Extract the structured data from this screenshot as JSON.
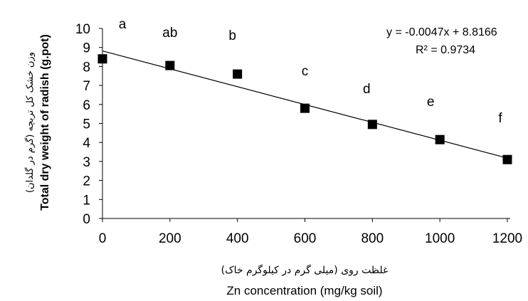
{
  "chart_data": {
    "type": "scatter",
    "x": [
      0,
      200,
      400,
      600,
      800,
      1000,
      1200
    ],
    "y": [
      8.4,
      8.05,
      7.6,
      5.8,
      4.95,
      4.15,
      3.1
    ],
    "significance_letters": [
      "a",
      "ab",
      "b",
      "c",
      "d",
      "e",
      "f"
    ],
    "trendline": {
      "slope": -0.0047,
      "intercept": 8.8166
    },
    "equation_text": "y = -0.0047x + 8.8166",
    "r2_text": "R² = 0.9734",
    "xlabel": "Zn concentration (mg/kg soil)",
    "xlabel_fa": "غلظت روی (میلی گرم در کیلوگرم خاک)",
    "ylabel": "Total dry weight of radish (g.pot)",
    "ylabel_fa": "وزن خشک کل تربچه (گرم در گلدان)",
    "xlim": [
      0,
      1200
    ],
    "ylim": [
      0,
      10
    ],
    "xticks": [
      "0",
      "200",
      "400",
      "600",
      "800",
      "1000",
      "1200"
    ],
    "yticks": [
      "0",
      "1",
      "2",
      "3",
      "4",
      "5",
      "6",
      "7",
      "8",
      "9",
      "10"
    ],
    "grid": false,
    "marker_color": "#000000"
  }
}
